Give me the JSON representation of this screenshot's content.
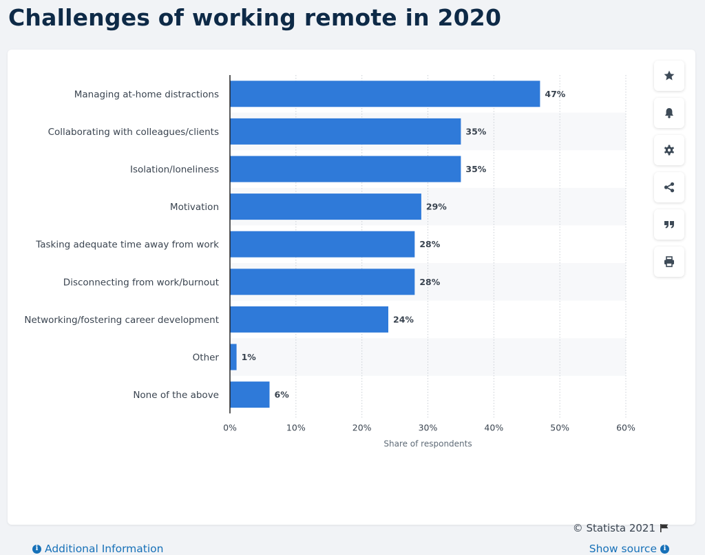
{
  "page": {
    "title": "Challenges of working remote in 2020"
  },
  "tools": [
    {
      "icon": "star-icon"
    },
    {
      "icon": "bell-icon"
    },
    {
      "icon": "gear-icon"
    },
    {
      "icon": "share-icon"
    },
    {
      "icon": "quote-icon"
    },
    {
      "icon": "print-icon"
    }
  ],
  "footer": {
    "copyright": "© Statista 2021",
    "additional_info": "Additional Information",
    "show_source": "Show source"
  },
  "colors": {
    "bar": "#2f7ad9",
    "title": "#0e2a47",
    "link": "#1670b8",
    "band": "#f7f8fa"
  },
  "chart_data": {
    "type": "bar",
    "orientation": "horizontal",
    "categories": [
      "Managing at-home distractions",
      "Collaborating with colleagues/clients",
      "Isolation/loneliness",
      "Motivation",
      "Tasking adequate time away from work",
      "Disconnecting from work/burnout",
      "Networking/fostering career development",
      "Other",
      "None of the above"
    ],
    "values": [
      47,
      35,
      35,
      29,
      28,
      28,
      24,
      1,
      6
    ],
    "value_labels": [
      "47%",
      "35%",
      "35%",
      "29%",
      "28%",
      "28%",
      "24%",
      "1%",
      "6%"
    ],
    "xticks": [
      0,
      10,
      20,
      30,
      40,
      50,
      60
    ],
    "xtick_labels": [
      "0%",
      "10%",
      "20%",
      "30%",
      "40%",
      "50%",
      "60%"
    ],
    "xlim": [
      0,
      60
    ],
    "xlabel": "Share of respondents",
    "grid": true
  }
}
